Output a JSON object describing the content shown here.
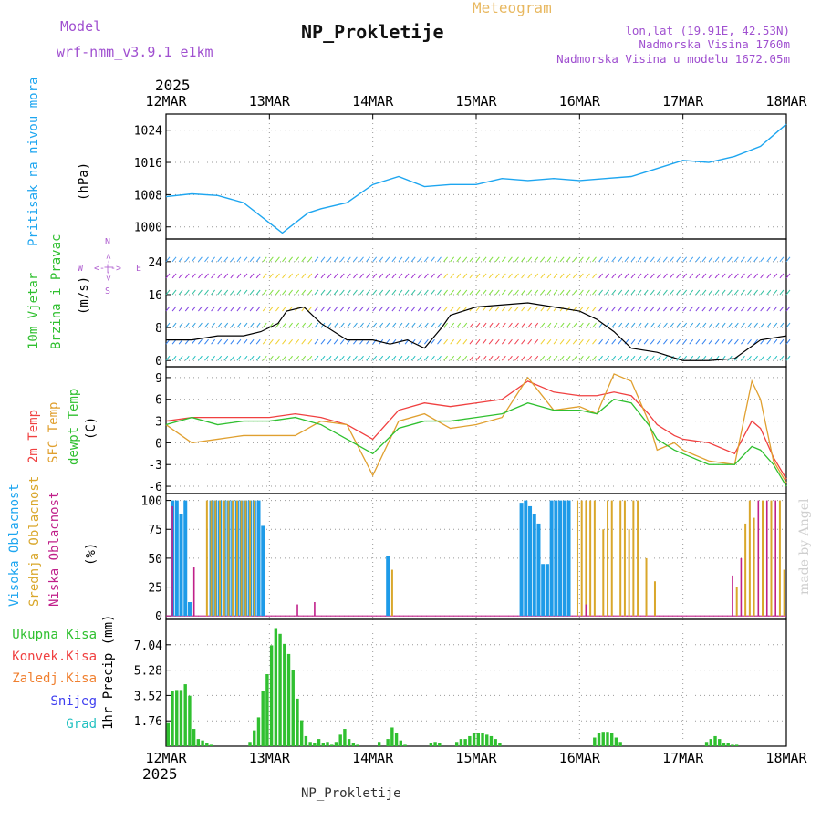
{
  "header": {
    "model_label": "Model",
    "model_name": "wrf-nmm_v3.9.1 e1km",
    "station_title": "NP_Prokletije",
    "meteogram_label": "Meteogram",
    "location_lines": [
      "lon,lat (19.91E, 42.53N)",
      "Nadmorska Visina 1760m",
      "Nadmorska Visina u modelu 1672.05m"
    ]
  },
  "footer": {
    "station": "NP_Prokletije",
    "watermark": "made by Angel"
  },
  "time_axis": {
    "year": "2025",
    "ticks": [
      "12MAR",
      "13MAR",
      "14MAR",
      "15MAR",
      "16MAR",
      "17MAR",
      "18MAR"
    ]
  },
  "colors": {
    "pressure": "#1ea6f0",
    "temp2m": "#f04040",
    "sfc_temp": "#e0a030",
    "dewpt": "#30c030",
    "high_cloud": "#1e9be8",
    "mid_cloud": "#d9a72b",
    "low_cloud": "#c0208a",
    "precip_total": "#30c030",
    "precip_conv": "#f04040",
    "wind_speed": "#000000"
  },
  "panels": {
    "pressure": {
      "ylabel_main": "Pritisak na nivou mora",
      "ylabel_unit": "(hPa)"
    },
    "wind": {
      "ylabel_main": "10m Vjetar",
      "ylabel_sub": "Brzina i Pravac",
      "ylabel_unit": "(m/s)",
      "compass_n": "N",
      "compass_s": "S",
      "compass_w": "W",
      "compass_e": "E",
      "compass_arrow_h": "<-|->",
      "compass_arrow_v": "<-|->"
    },
    "temp": {
      "labels": [
        "2m Temp",
        "SFC Temp",
        "dewpt Temp"
      ],
      "ylabel_unit": "(C)"
    },
    "cloud": {
      "labels": [
        "Visoka Oblacnost",
        "Srednja Oblacnost",
        "Niska Oblacnost"
      ],
      "ylabel_unit": "(%)"
    },
    "precip": {
      "labels": [
        "Ukupna Kisa",
        "Konvek.Kisa",
        "Zaledj.Kisa",
        "Snijeg",
        "Grad"
      ],
      "label_colors": [
        "#30c030",
        "#f04040",
        "#f08030",
        "#4040f0",
        "#20c0c0"
      ],
      "ylabel_unit": "1hr Precip (mm)"
    }
  },
  "chart_data": [
    {
      "type": "line",
      "title": "Pritisak na nivou mora",
      "ylabel": "(hPa)",
      "ylim": [
        997,
        1028
      ],
      "yticks": [
        1000,
        1008,
        1016,
        1024
      ],
      "grid": true,
      "x_hours": [
        0,
        6,
        12,
        18,
        24,
        27,
        30,
        33,
        36,
        42,
        48,
        54,
        60,
        66,
        72,
        78,
        84,
        90,
        96,
        102,
        108,
        114,
        120,
        126,
        132,
        138,
        144
      ],
      "series": [
        {
          "values": [
            1007.5,
            1008.2,
            1007.8,
            1006.0,
            1001.0,
            998.5,
            1001.0,
            1003.5,
            1004.5,
            1006.0,
            1010.5,
            1012.5,
            1010.0,
            1010.5,
            1010.5,
            1012.0,
            1011.5,
            1012.0,
            1011.5,
            1012.0,
            1012.5,
            1014.5,
            1016.5,
            1016.0,
            1017.5,
            1020.0,
            1025.5
          ]
        }
      ]
    },
    {
      "type": "line",
      "title": "10m Vjetar Brzina i Pravac",
      "ylabel": "(m/s)",
      "ylim": [
        -1.5,
        29.5
      ],
      "yticks": [
        0,
        8,
        16,
        24
      ],
      "grid": true,
      "x_hours": [
        0,
        6,
        12,
        18,
        22,
        26,
        28,
        32,
        36,
        42,
        48,
        52,
        56,
        60,
        64,
        66,
        72,
        78,
        84,
        90,
        96,
        100,
        104,
        108,
        114,
        120,
        126,
        132,
        138,
        144
      ],
      "series": [
        {
          "name": "wind",
          "values": [
            5,
            5,
            6,
            6,
            7,
            9,
            12,
            13,
            9,
            5,
            5,
            4,
            5,
            3,
            8,
            11,
            13,
            13.5,
            14,
            13,
            12,
            10,
            7,
            3,
            2,
            0,
            0,
            0.5,
            5,
            6
          ]
        }
      ]
    },
    {
      "type": "line",
      "title": "Temperature",
      "ylabel": "(C)",
      "ylim": [
        -7,
        10.5
      ],
      "yticks": [
        -6,
        -3,
        0,
        3,
        6,
        9
      ],
      "grid": true,
      "x_hours": [
        0,
        6,
        12,
        18,
        24,
        30,
        36,
        42,
        48,
        54,
        60,
        66,
        72,
        78,
        84,
        90,
        96,
        100,
        104,
        108,
        112,
        114,
        118,
        120,
        126,
        132,
        136,
        138,
        141,
        144
      ],
      "series": [
        {
          "name": "2m Temp",
          "values": [
            3,
            3.5,
            3.5,
            3.5,
            3.5,
            4,
            3.5,
            2.5,
            0.5,
            4.5,
            5.5,
            5,
            5.5,
            6,
            8.5,
            7,
            6.5,
            6.5,
            7,
            6.5,
            4,
            2.5,
            1,
            0.5,
            0,
            -1.5,
            3,
            2,
            -2,
            -5
          ]
        },
        {
          "name": "SFC Temp",
          "values": [
            2.5,
            0,
            0.5,
            1,
            1,
            1,
            3,
            2.5,
            -4.5,
            3,
            4,
            2,
            2.5,
            3.5,
            9,
            4.5,
            5,
            4,
            9.5,
            8.5,
            3,
            -1,
            0,
            -1,
            -2.5,
            -3,
            8.5,
            6,
            -2.5,
            -5.5
          ]
        },
        {
          "name": "dewpt Temp",
          "values": [
            2.5,
            3.5,
            2.5,
            3,
            3,
            3.5,
            2.5,
            0.5,
            -1.5,
            2,
            3,
            3,
            3.5,
            4,
            5.5,
            4.5,
            4.5,
            4,
            6,
            5.5,
            2.5,
            0.5,
            -1,
            -1.5,
            -3,
            -3,
            -0.5,
            -1,
            -3,
            -6
          ]
        }
      ]
    },
    {
      "type": "bar",
      "title": "Oblacnost",
      "ylabel": "(%)",
      "ylim": [
        -3,
        106
      ],
      "yticks": [
        0,
        25,
        50,
        75,
        100
      ],
      "grid": true,
      "series": [
        {
          "name": "Visoka Oblacnost",
          "bars": [
            [
              1,
              100
            ],
            [
              2,
              100
            ],
            [
              3,
              88
            ],
            [
              4,
              100
            ],
            [
              5,
              12
            ],
            [
              10,
              100
            ],
            [
              11,
              100
            ],
            [
              12,
              100
            ],
            [
              13,
              100
            ],
            [
              14,
              100
            ],
            [
              15,
              100
            ],
            [
              16,
              100
            ],
            [
              17,
              100
            ],
            [
              18,
              100
            ],
            [
              19,
              100
            ],
            [
              20,
              100
            ],
            [
              21,
              100
            ],
            [
              22,
              78
            ],
            [
              51,
              52
            ],
            [
              82,
              98
            ],
            [
              83,
              100
            ],
            [
              84,
              95
            ],
            [
              85,
              88
            ],
            [
              86,
              80
            ],
            [
              87,
              45
            ],
            [
              88,
              45
            ],
            [
              89,
              100
            ],
            [
              90,
              100
            ],
            [
              91,
              100
            ],
            [
              92,
              100
            ],
            [
              93,
              100
            ]
          ]
        },
        {
          "name": "Srednja Oblacnost",
          "bars": [
            [
              9,
              100
            ],
            [
              10,
              100
            ],
            [
              11,
              100
            ],
            [
              12,
              100
            ],
            [
              13,
              100
            ],
            [
              14,
              100
            ],
            [
              15,
              100
            ],
            [
              16,
              100
            ],
            [
              17,
              100
            ],
            [
              18,
              100
            ],
            [
              19,
              100
            ],
            [
              20,
              100
            ],
            [
              52,
              40
            ],
            [
              95,
              100
            ],
            [
              96,
              100
            ],
            [
              97,
              100
            ],
            [
              98,
              100
            ],
            [
              99,
              100
            ],
            [
              101,
              75
            ],
            [
              102,
              100
            ],
            [
              103,
              100
            ],
            [
              105,
              100
            ],
            [
              106,
              100
            ],
            [
              107,
              75
            ],
            [
              108,
              100
            ],
            [
              109,
              100
            ],
            [
              111,
              50
            ],
            [
              113,
              30
            ],
            [
              132,
              25
            ],
            [
              134,
              80
            ],
            [
              135,
              100
            ],
            [
              136,
              85
            ],
            [
              138,
              100
            ],
            [
              140,
              100
            ],
            [
              142,
              100
            ],
            [
              143,
              40
            ]
          ]
        },
        {
          "name": "Niska Oblacnost",
          "bars": [
            [
              1,
              95
            ],
            [
              6,
              42
            ],
            [
              30,
              10
            ],
            [
              34,
              12
            ],
            [
              97,
              10
            ],
            [
              131,
              35
            ],
            [
              133,
              50
            ],
            [
              137,
              100
            ],
            [
              139,
              100
            ],
            [
              141,
              100
            ]
          ]
        }
      ]
    },
    {
      "type": "bar",
      "title": "1hr Precip",
      "ylabel": "1hr Precip (mm)",
      "ylim": [
        0,
        8.8
      ],
      "yticks": [
        1.76,
        3.52,
        5.28,
        7.04
      ],
      "grid": true,
      "series": [
        {
          "name": "Ukupna Kisa",
          "bars": [
            [
              0,
              1.6
            ],
            [
              1,
              3.8
            ],
            [
              2,
              3.9
            ],
            [
              3,
              3.9
            ],
            [
              4,
              4.3
            ],
            [
              5,
              3.5
            ],
            [
              6,
              1.2
            ],
            [
              7,
              0.5
            ],
            [
              8,
              0.4
            ],
            [
              9,
              0.2
            ],
            [
              10,
              0.1
            ],
            [
              19,
              0.3
            ],
            [
              20,
              1.1
            ],
            [
              21,
              2.0
            ],
            [
              22,
              3.8
            ],
            [
              23,
              5.0
            ],
            [
              24,
              7.0
            ],
            [
              25,
              8.2
            ],
            [
              26,
              7.8
            ],
            [
              27,
              7.1
            ],
            [
              28,
              6.4
            ],
            [
              29,
              5.3
            ],
            [
              30,
              3.3
            ],
            [
              31,
              1.8
            ],
            [
              32,
              0.7
            ],
            [
              33,
              0.3
            ],
            [
              34,
              0.2
            ],
            [
              35,
              0.5
            ],
            [
              36,
              0.2
            ],
            [
              37,
              0.3
            ],
            [
              38,
              0.1
            ],
            [
              39,
              0.3
            ],
            [
              40,
              0.8
            ],
            [
              41,
              1.2
            ],
            [
              42,
              0.5
            ],
            [
              43,
              0.2
            ],
            [
              44,
              0.1
            ],
            [
              49,
              0.3
            ],
            [
              51,
              0.5
            ],
            [
              52,
              1.3
            ],
            [
              53,
              0.9
            ],
            [
              54,
              0.4
            ],
            [
              55,
              0.1
            ],
            [
              61,
              0.2
            ],
            [
              62,
              0.3
            ],
            [
              63,
              0.2
            ],
            [
              67,
              0.3
            ],
            [
              68,
              0.5
            ],
            [
              69,
              0.5
            ],
            [
              70,
              0.7
            ],
            [
              71,
              0.9
            ],
            [
              72,
              0.9
            ],
            [
              73,
              0.9
            ],
            [
              74,
              0.8
            ],
            [
              75,
              0.7
            ],
            [
              76,
              0.5
            ],
            [
              77,
              0.2
            ],
            [
              99,
              0.6
            ],
            [
              100,
              0.9
            ],
            [
              101,
              1.0
            ],
            [
              102,
              1.0
            ],
            [
              103,
              0.9
            ],
            [
              104,
              0.6
            ],
            [
              105,
              0.3
            ],
            [
              125,
              0.3
            ],
            [
              126,
              0.5
            ],
            [
              127,
              0.7
            ],
            [
              128,
              0.5
            ],
            [
              129,
              0.2
            ],
            [
              130,
              0.2
            ],
            [
              131,
              0.1
            ],
            [
              132,
              0.1
            ]
          ]
        }
      ]
    }
  ]
}
